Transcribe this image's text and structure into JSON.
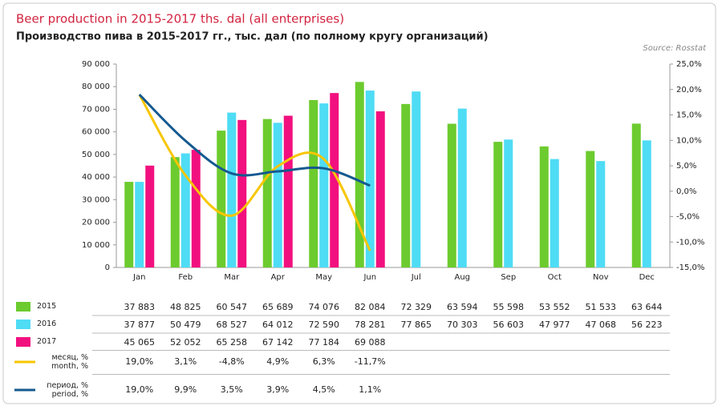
{
  "chart_data": {
    "type": "bar",
    "title": "Beer production in 2015-2017 ths. dal (all enterprises)",
    "subtitle": "Производство пива в 2015-2017 гг., тыс. дал (по полному кругу организаций)",
    "source": "Source: Rosstat",
    "categories": [
      "Jan",
      "Feb",
      "Mar",
      "Apr",
      "May",
      "Jun",
      "Jul",
      "Aug",
      "Sep",
      "Oct",
      "Nov",
      "Dec"
    ],
    "series": [
      {
        "name": "2015",
        "color": "#6ccb2e",
        "values": [
          37883,
          48825,
          60547,
          65689,
          74076,
          82084,
          72329,
          63594,
          55598,
          53552,
          51533,
          63644
        ],
        "value_labels": [
          "37 883",
          "48 825",
          "60 547",
          "65 689",
          "74 076",
          "82 084",
          "72 329",
          "63 594",
          "55 598",
          "53 552",
          "51 533",
          "63 644"
        ]
      },
      {
        "name": "2016",
        "color": "#4fdcf5",
        "values": [
          37877,
          50479,
          68527,
          64012,
          72590,
          78281,
          77865,
          70303,
          56603,
          47977,
          47068,
          56223
        ],
        "value_labels": [
          "37 877",
          "50 479",
          "68 527",
          "64 012",
          "72 590",
          "78 281",
          "77 865",
          "70 303",
          "56 603",
          "47 977",
          "47 068",
          "56 223"
        ]
      },
      {
        "name": "2017",
        "color": "#f2107f",
        "values": [
          45065,
          52052,
          65258,
          67142,
          77184,
          69088,
          null,
          null,
          null,
          null,
          null,
          null
        ],
        "value_labels": [
          "45 065",
          "52 052",
          "65 258",
          "67 142",
          "77 184",
          "69 088",
          null,
          null,
          null,
          null,
          null,
          null
        ]
      },
      {
        "name": "месяц, %\nmonth, %",
        "color": "#f7c600",
        "type": "line",
        "axis": "y2",
        "values": [
          19.0,
          3.1,
          -4.8,
          4.9,
          6.3,
          -11.7,
          null,
          null,
          null,
          null,
          null,
          null
        ],
        "value_labels": [
          "19,0%",
          "3,1%",
          "-4,8%",
          "4,9%",
          "6,3%",
          "-11,7%",
          null,
          null,
          null,
          null,
          null,
          null
        ]
      },
      {
        "name": "период, %\nperiod, %",
        "color": "#15598f",
        "type": "line",
        "axis": "y2",
        "values": [
          19.0,
          9.9,
          3.5,
          3.9,
          4.5,
          1.1,
          null,
          null,
          null,
          null,
          null,
          null
        ],
        "value_labels": [
          "19,0%",
          "9,9%",
          "3,5%",
          "3,9%",
          "4,5%",
          "1,1%",
          null,
          null,
          null,
          null,
          null,
          null
        ]
      }
    ],
    "ylim": [
      0,
      90000
    ],
    "yticks": [
      0,
      {
        "value": 10000,
        "label": "10 000"
      },
      {
        "value": 20000,
        "label": "20 000"
      },
      {
        "value": 30000,
        "label": "30 000"
      },
      {
        "value": 40000,
        "label": "40 000"
      },
      {
        "value": 50000,
        "label": "50 000"
      },
      {
        "value": 60000,
        "label": "60 000"
      },
      {
        "value": 70000,
        "label": "70 000"
      },
      {
        "value": 80000,
        "label": "80 000"
      },
      {
        "value": 90000,
        "label": "90 000"
      }
    ],
    "y2lim": [
      -15,
      25
    ],
    "y2ticks": [
      {
        "value": -15,
        "label": "-15,0%"
      },
      {
        "value": -10,
        "label": "-10,0%"
      },
      {
        "value": -5,
        "label": "-5,0%"
      },
      {
        "value": 0,
        "label": "0,0%"
      },
      {
        "value": 5,
        "label": "5,0%"
      },
      {
        "value": 10,
        "label": "10,0%"
      },
      {
        "value": 15,
        "label": "15,0%"
      },
      {
        "value": 20,
        "label": "20,0%"
      },
      {
        "value": 25,
        "label": "25,0%"
      }
    ]
  }
}
